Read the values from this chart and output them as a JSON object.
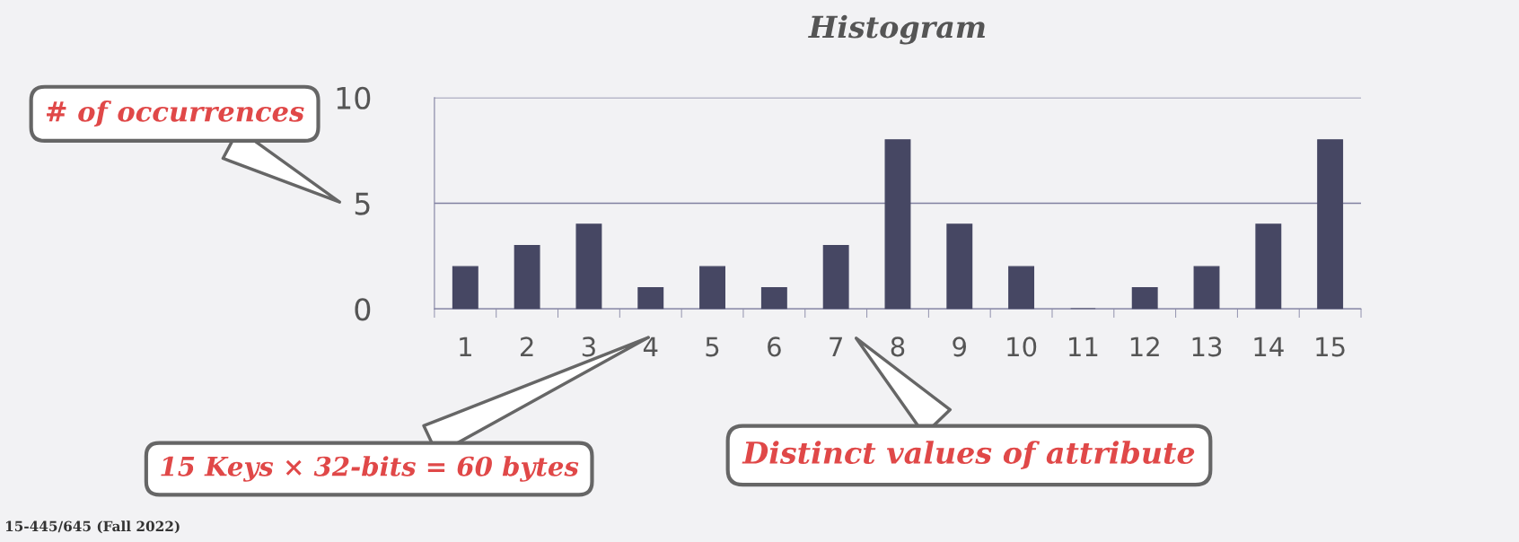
{
  "chart_data": {
    "type": "bar",
    "title": "Histogram",
    "categories": [
      "1",
      "2",
      "3",
      "4",
      "5",
      "6",
      "7",
      "8",
      "9",
      "10",
      "11",
      "12",
      "13",
      "14",
      "15"
    ],
    "values": [
      2,
      3,
      4,
      1,
      2,
      1,
      3,
      8,
      4,
      2,
      0,
      1,
      2,
      4,
      8
    ],
    "color": "#464763",
    "ylim": [
      0,
      10
    ],
    "yticks": [
      0,
      5,
      10
    ],
    "grid": "y",
    "annotations": [
      "# of occurrences",
      "15 Keys × 32-bits = 60 bytes",
      "Distinct values of attribute",
      "15-445/645 (Fall 2022)"
    ]
  }
}
